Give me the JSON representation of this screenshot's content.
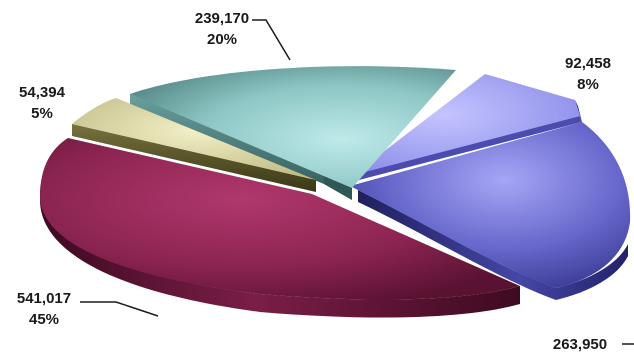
{
  "chart_data": {
    "type": "pie",
    "style": "3d-exploded",
    "slices": [
      {
        "value": 541017,
        "value_label": "541,017",
        "percent_label": "45%",
        "color": "#8b2450"
      },
      {
        "value": 263950,
        "value_label": "263,950",
        "percent_label": "",
        "color": "#5c5cc4"
      },
      {
        "value": 92458,
        "value_label": "92,458",
        "percent_label": "8%",
        "color": "#9a9af2"
      },
      {
        "value": 239170,
        "value_label": "239,170",
        "percent_label": "20%",
        "color": "#7fb8b4"
      },
      {
        "value": 54394,
        "value_label": "54,394",
        "percent_label": "5%",
        "color": "#d7d39e"
      }
    ]
  }
}
